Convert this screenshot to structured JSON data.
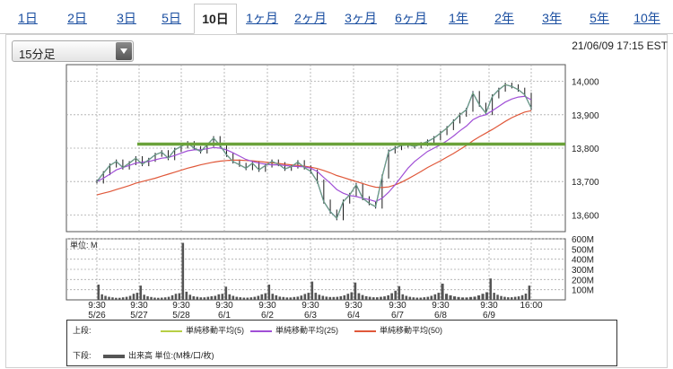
{
  "tabs": [
    {
      "label": "1日",
      "active": false
    },
    {
      "label": "2日",
      "active": false
    },
    {
      "label": "3日",
      "active": false
    },
    {
      "label": "5日",
      "active": false
    },
    {
      "label": "10日",
      "active": true
    },
    {
      "label": "1ヶ月",
      "active": false
    },
    {
      "label": "2ヶ月",
      "active": false
    },
    {
      "label": "3ヶ月",
      "active": false
    },
    {
      "label": "6ヶ月",
      "active": false
    },
    {
      "label": "1年",
      "active": false
    },
    {
      "label": "2年",
      "active": false
    },
    {
      "label": "3年",
      "active": false
    },
    {
      "label": "5年",
      "active": false
    },
    {
      "label": "10年",
      "active": false
    }
  ],
  "interval_select": {
    "value": "15分足"
  },
  "timestamp": "21/06/09 17:15 EST",
  "legend": {
    "upper_label": "上段:",
    "lower_label": "下段:",
    "sma5": "単純移動平均(5)",
    "sma25": "単純移動平均(25)",
    "sma50": "単純移動平均(50)",
    "volume": "出来高 単位:(M株/口/枚)"
  },
  "colors": {
    "price": "#1a1a1a",
    "sma5": "#b7cf45",
    "sma25": "#a04fd6",
    "sma50": "#e0583a",
    "resistance": "#6aa23a",
    "volume": "#555555"
  },
  "chart_data": [
    {
      "type": "line",
      "panel": "price",
      "y_ticks": [
        "14,000",
        "13,900",
        "13,800",
        "13,700",
        "13,600"
      ],
      "ylim": [
        13550,
        14050
      ],
      "resistance_level": 13812,
      "session_markers": [
        "5/26",
        "5/27",
        "5/28",
        "6/1",
        "6/2",
        "6/3",
        "6/4",
        "6/7",
        "6/8",
        "6/9"
      ],
      "series": [
        {
          "key": "price",
          "values": [
            13700,
            13725,
            13748,
            13760,
            13742,
            13755,
            13770,
            13752,
            13765,
            13780,
            13788,
            13770,
            13795,
            13805,
            13815,
            13800,
            13790,
            13810,
            13830,
            13808,
            13780,
            13760,
            13750,
            13740,
            13755,
            13735,
            13748,
            13760,
            13752,
            13738,
            13745,
            13758,
            13742,
            13730,
            13700,
            13640,
            13610,
            13590,
            13640,
            13660,
            13690,
            13650,
            13635,
            13625,
            13715,
            13790,
            13800,
            13808,
            13810,
            13805,
            13812,
            13820,
            13830,
            13845,
            13860,
            13880,
            13900,
            13915,
            13965,
            13930,
            13905,
            13955,
            13975,
            13990,
            13985,
            13975,
            13960,
            13920
          ]
        },
        {
          "key": "sma25",
          "values": [
            13700,
            13710,
            13722,
            13735,
            13742,
            13748,
            13755,
            13758,
            13760,
            13765,
            13770,
            13772,
            13778,
            13785,
            13792,
            13795,
            13795,
            13798,
            13802,
            13800,
            13795,
            13786,
            13776,
            13766,
            13760,
            13755,
            13752,
            13750,
            13750,
            13748,
            13746,
            13745,
            13744,
            13740,
            13730,
            13712,
            13695,
            13676,
            13665,
            13658,
            13655,
            13650,
            13646,
            13640,
            13650,
            13668,
            13690,
            13715,
            13740,
            13760,
            13775,
            13790,
            13800,
            13810,
            13822,
            13836,
            13852,
            13866,
            13885,
            13895,
            13900,
            13912,
            13925,
            13938,
            13947,
            13953,
            13955,
            13945
          ]
        },
        {
          "key": "sma50",
          "values": [
            13660,
            13665,
            13670,
            13676,
            13682,
            13688,
            13695,
            13700,
            13705,
            13710,
            13716,
            13722,
            13728,
            13734,
            13740,
            13745,
            13750,
            13754,
            13758,
            13761,
            13763,
            13764,
            13764,
            13763,
            13762,
            13760,
            13758,
            13756,
            13754,
            13752,
            13750,
            13748,
            13746,
            13743,
            13739,
            13733,
            13726,
            13718,
            13712,
            13706,
            13700,
            13694,
            13688,
            13683,
            13682,
            13684,
            13690,
            13698,
            13708,
            13719,
            13730,
            13742,
            13752,
            13762,
            13773,
            13784,
            13796,
            13808,
            13822,
            13834,
            13845,
            13856,
            13868,
            13880,
            13891,
            13900,
            13908,
            13912
          ]
        }
      ]
    },
    {
      "type": "bar",
      "panel": "volume",
      "ylabel": "単位: M",
      "y_ticks": [
        "600M",
        "500M",
        "400M",
        "300M",
        "200M",
        "100M"
      ],
      "ylim": [
        0,
        600
      ],
      "x_labels": [
        {
          "top": "9:30",
          "bottom": "5/26"
        },
        {
          "top": "9:30",
          "bottom": "5/27"
        },
        {
          "top": "9:30",
          "bottom": "5/28"
        },
        {
          "top": "9:30",
          "bottom": "6/1"
        },
        {
          "top": "9:30",
          "bottom": "6/2"
        },
        {
          "top": "9:30",
          "bottom": "6/3"
        },
        {
          "top": "9:30",
          "bottom": "6/4"
        },
        {
          "top": "9:30",
          "bottom": "6/7"
        },
        {
          "top": "9:30",
          "bottom": "6/8"
        },
        {
          "top": "9:30",
          "bottom": "6/9"
        },
        {
          "top": "16:00",
          "bottom": ""
        }
      ],
      "session_volumes": [
        [
          150,
          55,
          40,
          30,
          25,
          20,
          20,
          25,
          30,
          40,
          60,
          70
        ],
        [
          140,
          50,
          35,
          28,
          22,
          20,
          22,
          25,
          30,
          45,
          60,
          65
        ],
        [
          560,
          80,
          50,
          35,
          30,
          25,
          25,
          30,
          35,
          40,
          55,
          60
        ],
        [
          130,
          55,
          40,
          30,
          26,
          22,
          22,
          25,
          30,
          40,
          55,
          65
        ],
        [
          150,
          60,
          45,
          32,
          28,
          24,
          24,
          28,
          32,
          42,
          58,
          70
        ],
        [
          180,
          70,
          50,
          40,
          32,
          28,
          28,
          30,
          35,
          45,
          60,
          75
        ],
        [
          170,
          65,
          48,
          36,
          30,
          26,
          26,
          30,
          34,
          45,
          65,
          90
        ],
        [
          135,
          55,
          40,
          30,
          25,
          22,
          22,
          26,
          30,
          40,
          55,
          70
        ],
        [
          160,
          60,
          45,
          34,
          28,
          24,
          24,
          28,
          32,
          44,
          60,
          75
        ],
        [
          210,
          70,
          50,
          38,
          30,
          26,
          26,
          30,
          34,
          46,
          62,
          140
        ]
      ]
    }
  ]
}
